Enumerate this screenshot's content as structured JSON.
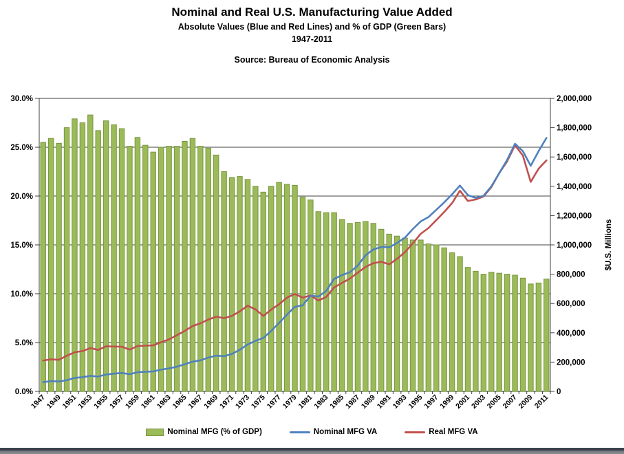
{
  "title": "Nominal and Real U.S. Manufacturing Value Added",
  "subtitle1": "Absolute Values (Blue and Red Lines) and % of GDP (Green Bars)",
  "subtitle2": "1947-2011",
  "source": "Source: Bureau of Economic Analysis",
  "colors": {
    "bar_fill": "#9BBB59",
    "bar_border": "#7A9540",
    "nominal_line": "#4F81BD",
    "real_line": "#C0504D",
    "gridline": "#404040",
    "text": "#000000"
  },
  "chart_data": {
    "type": "bar",
    "subtype": "combo-bar-plus-two-lines",
    "years": [
      1947,
      1948,
      1949,
      1950,
      1951,
      1952,
      1953,
      1954,
      1955,
      1956,
      1957,
      1958,
      1959,
      1960,
      1961,
      1962,
      1963,
      1964,
      1965,
      1966,
      1967,
      1968,
      1969,
      1970,
      1971,
      1972,
      1973,
      1974,
      1975,
      1976,
      1977,
      1978,
      1979,
      1980,
      1981,
      1982,
      1983,
      1984,
      1985,
      1986,
      1987,
      1988,
      1989,
      1990,
      1991,
      1992,
      1993,
      1994,
      1995,
      1996,
      1997,
      1998,
      1999,
      2000,
      2001,
      2002,
      2003,
      2004,
      2005,
      2006,
      2007,
      2008,
      2009,
      2010,
      2011
    ],
    "series": [
      {
        "name": "Nominal MFG (% of GDP)",
        "type": "bar",
        "axis": "left",
        "unit": "% of GDP",
        "values": [
          25.5,
          25.9,
          25.4,
          27.0,
          27.9,
          27.5,
          28.3,
          26.7,
          27.7,
          27.3,
          26.9,
          25.1,
          26.0,
          25.2,
          24.5,
          25.0,
          25.1,
          25.1,
          25.6,
          25.9,
          25.1,
          24.9,
          24.2,
          22.5,
          21.9,
          22.0,
          21.7,
          21.0,
          20.4,
          21.0,
          21.4,
          21.2,
          21.1,
          19.9,
          19.6,
          18.4,
          18.3,
          18.3,
          17.6,
          17.2,
          17.3,
          17.4,
          17.2,
          16.6,
          16.1,
          15.9,
          15.7,
          15.5,
          15.5,
          15.1,
          15.0,
          14.7,
          14.2,
          13.8,
          12.7,
          12.3,
          12.0,
          12.2,
          12.1,
          12.0,
          11.9,
          11.6,
          11.0,
          11.1,
          11.5
        ]
      },
      {
        "name": "Nominal MFG VA",
        "type": "line",
        "axis": "right",
        "unit": "$U.S. Millions",
        "values": [
          63000,
          70000,
          67500,
          76500,
          92000,
          97000,
          106000,
          101500,
          115000,
          121000,
          126000,
          117500,
          131000,
          134000,
          136500,
          148500,
          157500,
          168500,
          185500,
          203000,
          212000,
          231000,
          244000,
          240000,
          256000,
          284000,
          320000,
          345000,
          365000,
          413000,
          467000,
          524000,
          577000,
          588000,
          653000,
          648000,
          686000,
          768000,
          794000,
          813000,
          858000,
          929000,
          969000,
          986000,
          983000,
          1013000,
          1049000,
          1108000,
          1160000,
          1190000,
          1240000,
          1290000,
          1345000,
          1405000,
          1340000,
          1320000,
          1335000,
          1400000,
          1490000,
          1580000,
          1690000,
          1640000,
          1540000,
          1640000,
          1730000
        ]
      },
      {
        "name": "Real MFG VA",
        "type": "line",
        "axis": "right",
        "unit": "$U.S. Millions",
        "values": [
          211000,
          219000,
          216000,
          243000,
          267000,
          275000,
          296000,
          283000,
          308000,
          306000,
          305000,
          285000,
          310000,
          312000,
          314000,
          335000,
          355000,
          383000,
          413000,
          446000,
          465000,
          490000,
          510000,
          500000,
          515000,
          546000,
          585000,
          560000,
          515000,
          558000,
          595000,
          640000,
          665000,
          640000,
          655000,
          620000,
          645000,
          710000,
          740000,
          770000,
          810000,
          850000,
          875000,
          885000,
          867000,
          905000,
          950000,
          1010000,
          1075000,
          1115000,
          1170000,
          1225000,
          1285000,
          1370000,
          1300000,
          1310000,
          1330000,
          1395000,
          1490000,
          1570000,
          1680000,
          1610000,
          1430000,
          1520000,
          1577000
        ]
      }
    ],
    "left_axis": {
      "min": 0,
      "max": 30,
      "step": 5,
      "tick_labels": [
        "0.0%",
        "5.0%",
        "10.0%",
        "15.0%",
        "20.0%",
        "25.0%",
        "30.0%"
      ],
      "grid": true
    },
    "right_axis": {
      "min": 0,
      "max": 2000000,
      "step": 200000,
      "tick_labels": [
        "0",
        "200,000",
        "400,000",
        "600,000",
        "800,000",
        "1,000,000",
        "1,200,000",
        "1,400,000",
        "1,600,000",
        "1,800,000",
        "2,000,000"
      ],
      "title": "$U.S. Millions"
    },
    "x_tick_labels": [
      "1947",
      "1949",
      "1951",
      "1953",
      "1955",
      "1957",
      "1959",
      "1961",
      "1963",
      "1965",
      "1967",
      "1969",
      "1971",
      "1973",
      "1975",
      "1977",
      "1979",
      "1981",
      "1983",
      "1985",
      "1987",
      "1989",
      "1991",
      "1993",
      "1995",
      "1997",
      "1999",
      "2001",
      "2003",
      "2005",
      "2007",
      "2009",
      "2011"
    ],
    "legend_position": "bottom"
  }
}
